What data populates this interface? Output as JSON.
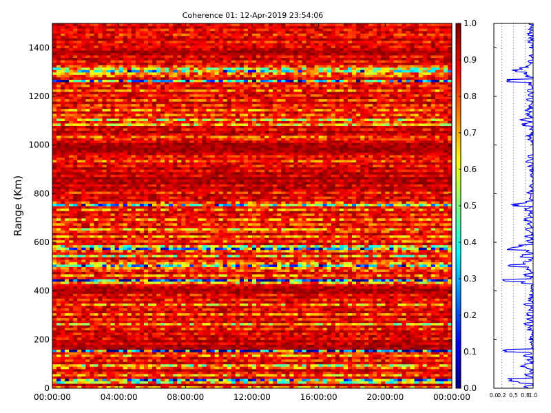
{
  "chart_data": [
    {
      "type": "heatmap",
      "title": "Coherence 01: 12-Apr-2019 23:54:06",
      "xlabel": "",
      "ylabel": "Range (Km)",
      "x_tick_labels": [
        "00:00:00",
        "04:00:00",
        "08:00:00",
        "12:00:00",
        "16:00:00",
        "20:00:00",
        "00:00:00"
      ],
      "y_tick_labels": [
        "0",
        "200",
        "400",
        "600",
        "800",
        "1000",
        "1200",
        "1400"
      ],
      "ylim": [
        0,
        1500
      ],
      "colormap": "jet",
      "colorbar": {
        "range": [
          0.0,
          1.0
        ],
        "tick_labels": [
          "0.0",
          "0.1",
          "0.2",
          "0.3",
          "0.4",
          "0.5",
          "0.6",
          "0.7",
          "0.8",
          "0.9",
          "1.0"
        ]
      },
      "range_km_levels": [
        [
          0,
          0.74
        ],
        [
          10,
          0.95
        ],
        [
          20,
          0.6
        ],
        [
          30,
          0.45
        ],
        [
          40,
          0.9
        ],
        [
          50,
          0.72
        ],
        [
          60,
          0.88
        ],
        [
          70,
          0.94
        ],
        [
          80,
          0.78
        ],
        [
          90,
          0.65
        ],
        [
          100,
          0.92
        ],
        [
          110,
          0.85
        ],
        [
          120,
          0.9
        ],
        [
          130,
          0.73
        ],
        [
          140,
          0.86
        ],
        [
          150,
          0.22
        ],
        [
          160,
          0.95
        ],
        [
          170,
          0.96
        ],
        [
          180,
          0.91
        ],
        [
          190,
          0.95
        ],
        [
          200,
          0.88
        ],
        [
          210,
          0.92
        ],
        [
          220,
          0.87
        ],
        [
          230,
          0.93
        ],
        [
          240,
          0.82
        ],
        [
          250,
          0.9
        ],
        [
          260,
          0.67
        ],
        [
          270,
          0.91
        ],
        [
          280,
          0.84
        ],
        [
          290,
          0.93
        ],
        [
          300,
          0.78
        ],
        [
          310,
          0.92
        ],
        [
          320,
          0.86
        ],
        [
          330,
          0.9
        ],
        [
          340,
          0.72
        ],
        [
          350,
          0.91
        ],
        [
          360,
          0.85
        ],
        [
          370,
          0.93
        ],
        [
          380,
          0.87
        ],
        [
          390,
          0.95
        ],
        [
          400,
          0.96
        ],
        [
          410,
          0.93
        ],
        [
          420,
          0.9
        ],
        [
          430,
          0.7
        ],
        [
          440,
          0.18
        ],
        [
          450,
          0.88
        ],
        [
          460,
          0.75
        ],
        [
          470,
          0.91
        ],
        [
          480,
          0.82
        ],
        [
          490,
          0.78
        ],
        [
          500,
          0.48
        ],
        [
          510,
          0.73
        ],
        [
          520,
          0.84
        ],
        [
          530,
          0.9
        ],
        [
          540,
          0.62
        ],
        [
          550,
          0.88
        ],
        [
          560,
          0.8
        ],
        [
          570,
          0.42
        ],
        [
          580,
          0.6
        ],
        [
          590,
          0.91
        ],
        [
          600,
          0.8
        ],
        [
          610,
          0.89
        ],
        [
          620,
          0.76
        ],
        [
          630,
          0.92
        ],
        [
          640,
          0.84
        ],
        [
          650,
          0.7
        ],
        [
          660,
          0.9
        ],
        [
          670,
          0.81
        ],
        [
          680,
          0.89
        ],
        [
          690,
          0.74
        ],
        [
          700,
          0.9
        ],
        [
          710,
          0.83
        ],
        [
          720,
          0.92
        ],
        [
          730,
          0.76
        ],
        [
          740,
          0.88
        ],
        [
          750,
          0.52
        ],
        [
          760,
          0.8
        ],
        [
          770,
          0.92
        ],
        [
          780,
          0.88
        ],
        [
          790,
          0.93
        ],
        [
          800,
          0.85
        ],
        [
          810,
          0.92
        ],
        [
          820,
          0.95
        ],
        [
          830,
          0.9
        ],
        [
          840,
          0.96
        ],
        [
          850,
          0.93
        ],
        [
          860,
          0.97
        ],
        [
          870,
          0.91
        ],
        [
          880,
          0.95
        ],
        [
          890,
          0.88
        ],
        [
          900,
          0.94
        ],
        [
          910,
          0.86
        ],
        [
          920,
          0.92
        ],
        [
          930,
          0.8
        ],
        [
          940,
          0.89
        ],
        [
          950,
          0.86
        ],
        [
          960,
          0.93
        ],
        [
          970,
          0.96
        ],
        [
          980,
          0.97
        ],
        [
          990,
          0.95
        ],
        [
          1000,
          0.96
        ],
        [
          1010,
          0.9
        ],
        [
          1020,
          0.85
        ],
        [
          1030,
          0.8
        ],
        [
          1040,
          0.91
        ],
        [
          1050,
          0.95
        ],
        [
          1060,
          0.88
        ],
        [
          1070,
          0.93
        ],
        [
          1080,
          0.7
        ],
        [
          1090,
          0.85
        ],
        [
          1100,
          0.66
        ],
        [
          1110,
          0.88
        ],
        [
          1120,
          0.8
        ],
        [
          1130,
          0.9
        ],
        [
          1140,
          0.76
        ],
        [
          1150,
          0.88
        ],
        [
          1160,
          0.83
        ],
        [
          1170,
          0.93
        ],
        [
          1180,
          0.82
        ],
        [
          1190,
          0.91
        ],
        [
          1200,
          0.85
        ],
        [
          1210,
          0.92
        ],
        [
          1220,
          0.78
        ],
        [
          1230,
          0.9
        ],
        [
          1240,
          0.84
        ],
        [
          1250,
          0.87
        ],
        [
          1260,
          0.4
        ],
        [
          1270,
          0.9
        ],
        [
          1280,
          0.8
        ],
        [
          1290,
          0.75
        ],
        [
          1300,
          0.55
        ],
        [
          1310,
          0.62
        ],
        [
          1320,
          0.82
        ],
        [
          1330,
          0.91
        ],
        [
          1340,
          0.86
        ],
        [
          1350,
          0.93
        ],
        [
          1360,
          0.88
        ],
        [
          1370,
          0.95
        ],
        [
          1380,
          0.97
        ],
        [
          1390,
          0.92
        ],
        [
          1400,
          0.88
        ],
        [
          1410,
          0.91
        ],
        [
          1420,
          0.86
        ],
        [
          1430,
          0.93
        ],
        [
          1440,
          0.89
        ],
        [
          1450,
          0.84
        ],
        [
          1460,
          0.9
        ],
        [
          1470,
          0.87
        ],
        [
          1480,
          0.92
        ],
        [
          1490,
          0.88
        ]
      ]
    },
    {
      "type": "line",
      "title": "",
      "xlabel": "",
      "ylabel": "",
      "x_tick_labels": [
        "0.0",
        "0.2",
        "0.5",
        "0.8",
        "1.0"
      ],
      "xlim": [
        0,
        1
      ],
      "ylim": [
        0,
        1500
      ],
      "grid": true,
      "color": "#0000ff"
    }
  ]
}
